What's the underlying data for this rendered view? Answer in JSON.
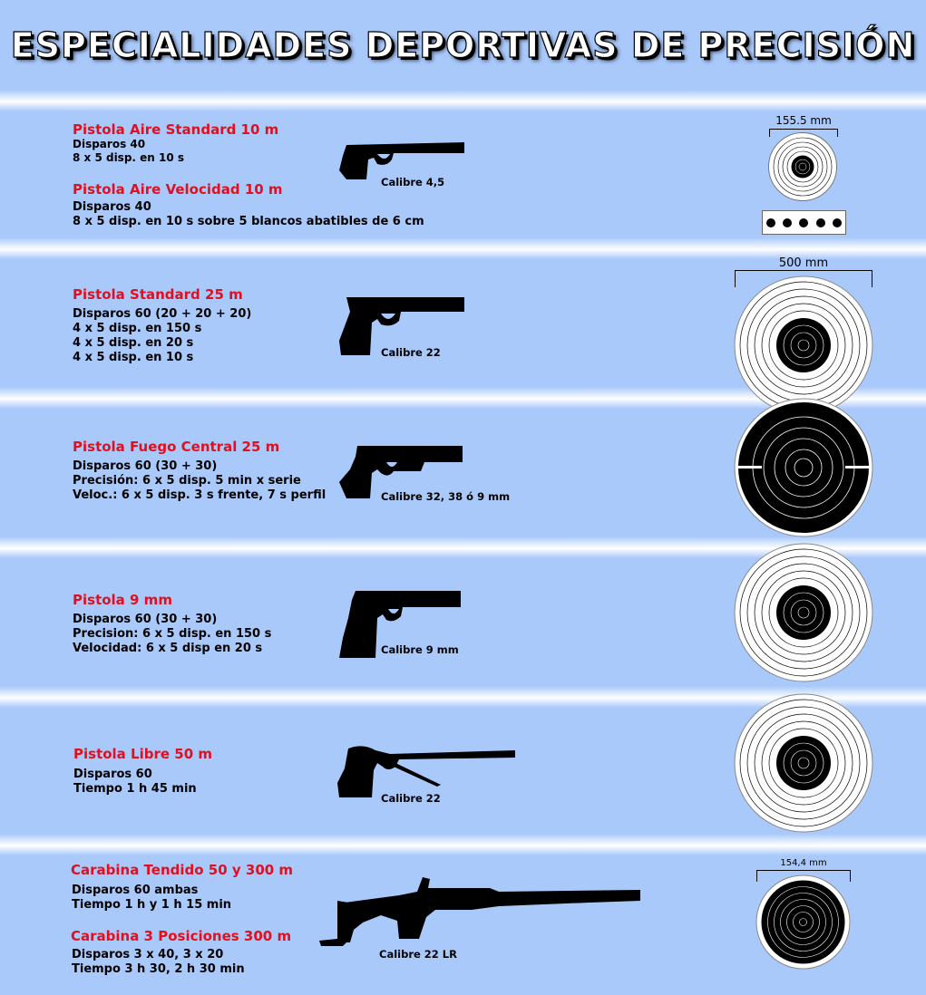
{
  "title": "ESPECIALIDADES DEPORTIVAS DE PRECISIÓN",
  "colors": {
    "background": "#a9c9fb",
    "event_name": "#e1101e",
    "text": "#000000"
  },
  "sections": [
    {
      "events": [
        {
          "name": "Pistola Aire Standard 10 m",
          "lines": [
            "Disparos 40",
            "8 x 5 disp. en 10 s"
          ]
        },
        {
          "name": "Pistola Aire Velocidad 10 m",
          "lines": [
            "Disparos 40",
            "8 x 5 disp. en 10 s sobre 5 blancos abatibles de 6 cm"
          ]
        }
      ],
      "gun_icon": "air-pistol-icon",
      "caliber": "Calibre 4,5",
      "target_icon": "air-pistol-target-icon",
      "target_size": "155.5 mm",
      "falling_targets": 5
    },
    {
      "events": [
        {
          "name": "Pistola Standard 25 m",
          "lines": [
            "Disparos 60 (20 + 20 + 20)",
            "4 x 5 disp. en 150 s",
            "4 x 5 disp. en 20 s",
            "4 x 5 disp. en 10 s"
          ]
        }
      ],
      "gun_icon": "standard-pistol-icon",
      "caliber": "Calibre 22",
      "target_icon": "precision-target-icon",
      "target_size": "500 mm"
    },
    {
      "events": [
        {
          "name": "Pistola Fuego Central 25 m",
          "lines": [
            "Disparos 60 (30 + 30)",
            "Precisión: 6 x 5 disp. 5 min x serie",
            "Veloc.: 6 x 5 disp. 3 s frente, 7 s perfil"
          ]
        }
      ],
      "gun_icon": "centerfire-pistol-icon",
      "caliber": "Calibre 32, 38 ó 9 mm",
      "target_icon": "rapid-fire-target-icon"
    },
    {
      "events": [
        {
          "name": "Pistola 9 mm",
          "lines": [
            "Disparos 60 (30 + 30)",
            "Precision: 6 x 5 disp. en 150 s",
            "Velocidad: 6 x 5 disp en 20 s"
          ]
        }
      ],
      "gun_icon": "9mm-pistol-icon",
      "caliber": "Calibre 9 mm",
      "target_icon": "precision-target-icon"
    },
    {
      "events": [
        {
          "name": "Pistola Libre 50 m",
          "lines": [
            "Disparos 60",
            "Tiempo 1 h 45 min"
          ]
        }
      ],
      "gun_icon": "free-pistol-icon",
      "caliber": "Calibre 22",
      "target_icon": "precision-target-icon"
    },
    {
      "events": [
        {
          "name": "Carabina Tendido 50 y 300 m",
          "lines": [
            "Disparos 60 ambas",
            "Tiempo 1 h y 1 h 15 min"
          ]
        },
        {
          "name": "Carabina 3 Posiciones 300 m",
          "lines": [
            "Disparos 3 x 40, 3 x 20",
            "Tiempo 3 h 30, 2 h 30 min"
          ]
        }
      ],
      "gun_icon": "rifle-icon",
      "caliber": "Calibre 22 LR",
      "target_icon": "rifle-target-icon",
      "target_size": "154,4 mm"
    }
  ]
}
